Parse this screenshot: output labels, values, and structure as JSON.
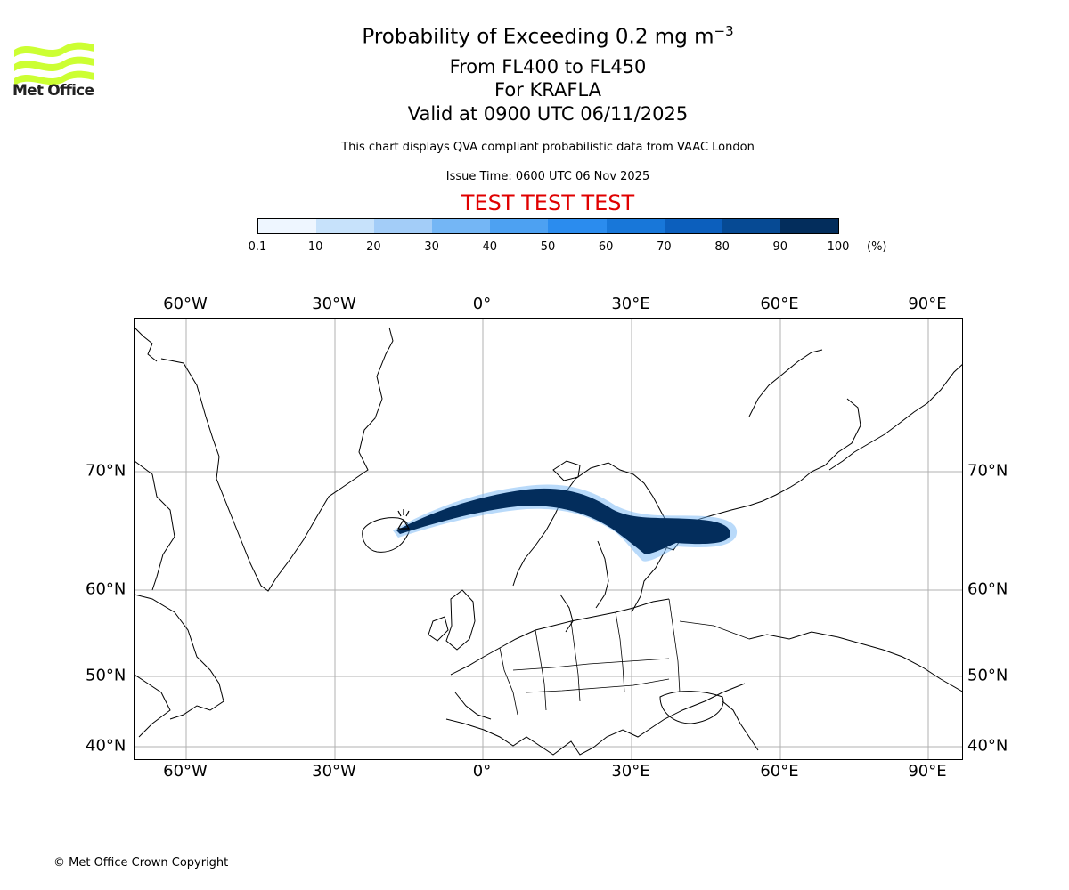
{
  "logo": {
    "text": "Met Office",
    "color": "#ccff33"
  },
  "title": {
    "main_prefix": "Probability of Exceeding 0.2 mg m",
    "main_exponent": "−3",
    "level": "From FL400 to FL450",
    "volcano": "For KRAFLA",
    "valid": "Valid at 0900 UTC 06/11/2025"
  },
  "subtitle": "This chart displays QVA compliant probabilistic data from VAAC London",
  "issue_time": "Issue Time: 0600 UTC 06 Nov 2025",
  "test_banner": "TEST TEST TEST",
  "colorbar": {
    "ticks": [
      "0.1",
      "10",
      "20",
      "30",
      "40",
      "50",
      "60",
      "70",
      "80",
      "90",
      "100"
    ],
    "unit": "(%)",
    "colors": [
      "#eef6ff",
      "#c7e2fb",
      "#a3cdf8",
      "#74b6f5",
      "#4da1f2",
      "#2b8cee",
      "#1877d9",
      "#0c5fbd",
      "#064a94",
      "#032d5c"
    ]
  },
  "map": {
    "lon_labels": [
      "60°W",
      "30°W",
      "0°",
      "30°E",
      "60°E",
      "90°E"
    ],
    "lat_labels": [
      "70°N",
      "60°N",
      "50°N",
      "40°N"
    ],
    "plume_color": "#032d5c"
  },
  "copyright": "© Met Office Crown Copyright"
}
